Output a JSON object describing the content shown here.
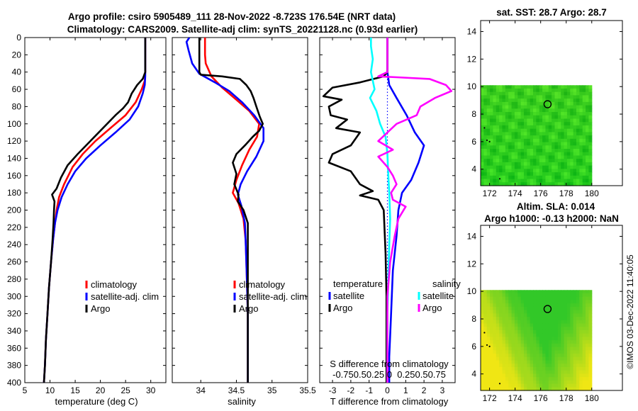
{
  "title": {
    "line1": "Argo profile: csiro 5905489_111 28-Nov-2022 -8.723S 176.54E (NRT data)",
    "line2": "Climatology: CARS2009. Satellite-adj clim: synTS_20221128.nc (0.93d earlier)"
  },
  "colors": {
    "climatology": "#ff0000",
    "satellite": "#0000ff",
    "argo": "#000000",
    "s_satellite": "#00ffff",
    "s_argo": "#ff00ff"
  },
  "depth_ticks": [
    0,
    20,
    40,
    60,
    80,
    100,
    120,
    140,
    160,
    180,
    200,
    220,
    240,
    260,
    280,
    300,
    320,
    340,
    360,
    380,
    400
  ],
  "chart_data": [
    {
      "type": "line",
      "name": "temperature",
      "xlabel": "temperature (deg C)",
      "xlim": [
        5,
        33
      ],
      "ylim": [
        400,
        0
      ],
      "x_ticks": [
        5,
        10,
        15,
        20,
        25,
        30
      ],
      "legend": [
        "climatology",
        "satellite-adj. clim",
        "Argo"
      ],
      "series": [
        {
          "name": "climatology",
          "color": "#ff0000",
          "points": [
            [
              28.9,
              0
            ],
            [
              28.9,
              40
            ],
            [
              28.8,
              50
            ],
            [
              28.2,
              60
            ],
            [
              27,
              75
            ],
            [
              25,
              90
            ],
            [
              22,
              105
            ],
            [
              19,
              120
            ],
            [
              16.5,
              135
            ],
            [
              14.5,
              150
            ],
            [
              12.8,
              170
            ],
            [
              11.8,
              185
            ],
            [
              11.3,
              200
            ],
            [
              11,
              215
            ],
            [
              10.6,
              235
            ],
            [
              10.2,
              260
            ],
            [
              9.8,
              290
            ],
            [
              9.5,
              320
            ],
            [
              9.2,
              350
            ],
            [
              9,
              380
            ],
            [
              8.8,
              400
            ]
          ]
        },
        {
          "name": "satellite-adj. clim",
          "color": "#0000ff",
          "points": [
            [
              28.9,
              0
            ],
            [
              28.9,
              45
            ],
            [
              28.8,
              55
            ],
            [
              28.4,
              65
            ],
            [
              27.5,
              80
            ],
            [
              25.8,
              95
            ],
            [
              23,
              110
            ],
            [
              20,
              125
            ],
            [
              17.2,
              140
            ],
            [
              15,
              155
            ],
            [
              13.5,
              170
            ],
            [
              12.3,
              185
            ],
            [
              11.5,
              200
            ],
            [
              11,
              215
            ],
            [
              10.6,
              235
            ],
            [
              10.2,
              260
            ],
            [
              9.8,
              290
            ],
            [
              9.5,
              320
            ],
            [
              9.2,
              350
            ],
            [
              9,
              380
            ],
            [
              8.8,
              400
            ]
          ]
        },
        {
          "name": "Argo",
          "color": "#000000",
          "points": [
            [
              28.9,
              0
            ],
            [
              28.9,
              40
            ],
            [
              28.6,
              45
            ],
            [
              28.4,
              48
            ],
            [
              27.3,
              55
            ],
            [
              26.2,
              65
            ],
            [
              25.5,
              75
            ],
            [
              24.5,
              82
            ],
            [
              23,
              90
            ],
            [
              20.5,
              105
            ],
            [
              18,
              120
            ],
            [
              15.5,
              135
            ],
            [
              13.5,
              148
            ],
            [
              12.2,
              162
            ],
            [
              11.3,
              175
            ],
            [
              10.4,
              182
            ],
            [
              10.9,
              190
            ],
            [
              10.8,
              200
            ],
            [
              10.7,
              215
            ],
            [
              10.5,
              235
            ],
            [
              10.2,
              260
            ],
            [
              9.8,
              290
            ],
            [
              9.5,
              320
            ],
            [
              9.2,
              350
            ],
            [
              9,
              380
            ],
            [
              8.8,
              400
            ]
          ]
        }
      ]
    },
    {
      "type": "line",
      "name": "salinity",
      "xlabel": "salinity",
      "xlim": [
        33.6,
        35.5
      ],
      "ylim": [
        400,
        0
      ],
      "x_ticks": [
        34,
        34.5,
        35,
        35.5
      ],
      "legend": [
        "climatology",
        "satellite-adj. clim",
        "Argo"
      ],
      "series": [
        {
          "name": "climatology",
          "color": "#ff0000",
          "points": [
            [
              34.06,
              0
            ],
            [
              34.06,
              20
            ],
            [
              34.07,
              30
            ],
            [
              34.15,
              45
            ],
            [
              34.3,
              58
            ],
            [
              34.5,
              72
            ],
            [
              34.68,
              85
            ],
            [
              34.82,
              100
            ],
            [
              34.79,
              115
            ],
            [
              34.68,
              130
            ],
            [
              34.58,
              148
            ],
            [
              34.5,
              165
            ],
            [
              34.45,
              180
            ],
            [
              34.53,
              192
            ],
            [
              34.6,
              210
            ],
            [
              34.63,
              235
            ],
            [
              34.64,
              260
            ],
            [
              34.65,
              290
            ],
            [
              34.66,
              320
            ],
            [
              34.66,
              350
            ],
            [
              34.66,
              380
            ],
            [
              34.66,
              400
            ]
          ]
        },
        {
          "name": "satellite-adj. clim",
          "color": "#0000ff",
          "points": [
            [
              33.84,
              0
            ],
            [
              33.8,
              5
            ],
            [
              33.83,
              15
            ],
            [
              33.88,
              30
            ],
            [
              33.98,
              42
            ],
            [
              34.2,
              52
            ],
            [
              34.4,
              62
            ],
            [
              34.58,
              75
            ],
            [
              34.75,
              90
            ],
            [
              34.88,
              105
            ],
            [
              34.88,
              120
            ],
            [
              34.78,
              138
            ],
            [
              34.65,
              155
            ],
            [
              34.56,
              170
            ],
            [
              34.52,
              182
            ],
            [
              34.57,
              195
            ],
            [
              34.62,
              215
            ],
            [
              34.63,
              235
            ],
            [
              34.64,
              260
            ],
            [
              34.65,
              290
            ],
            [
              34.66,
              320
            ],
            [
              34.66,
              350
            ],
            [
              34.66,
              380
            ],
            [
              34.66,
              400
            ]
          ]
        },
        {
          "name": "Argo",
          "color": "#000000",
          "points": [
            [
              33.98,
              0
            ],
            [
              33.98,
              40
            ],
            [
              34,
              43
            ],
            [
              34.3,
              45
            ],
            [
              34.55,
              48
            ],
            [
              34.64,
              55
            ],
            [
              34.7,
              62
            ],
            [
              34.74,
              70
            ],
            [
              34.78,
              80
            ],
            [
              34.83,
              92
            ],
            [
              34.87,
              100
            ],
            [
              34.82,
              108
            ],
            [
              34.73,
              115
            ],
            [
              34.62,
              125
            ],
            [
              34.5,
              135
            ],
            [
              34.45,
              145
            ],
            [
              34.5,
              158
            ],
            [
              34.47,
              170
            ],
            [
              34.53,
              182
            ],
            [
              34.52,
              190
            ],
            [
              34.6,
              200
            ],
            [
              34.66,
              215
            ],
            [
              34.66,
              240
            ],
            [
              34.66,
              270
            ],
            [
              34.66,
              300
            ],
            [
              34.66,
              340
            ],
            [
              34.66,
              380
            ],
            [
              34.66,
              400
            ]
          ]
        }
      ]
    },
    {
      "type": "line",
      "name": "difference from climatology",
      "xlabel": "T difference from climatology",
      "s_axis_label": "S difference from climatology",
      "s_axis_ticks": [
        "-0.75",
        "-0.5",
        "0",
        "0.25",
        "0.5",
        "0.75"
      ],
      "s_axis_text": "-0.750.50.25 0  0.250.50.75",
      "xlim": [
        -3.7,
        3.7
      ],
      "ylim": [
        400,
        0
      ],
      "x_ticks": [
        -3,
        -2,
        -1,
        0,
        1,
        2,
        3
      ],
      "legend_temperature_title": "temperature",
      "legend_salinity_title": "salinity",
      "legend_entries": [
        "satellite",
        "Argo",
        "satellite",
        "Argo"
      ],
      "series": [
        {
          "name": "T satellite",
          "color": "#0000ff",
          "points": [
            [
              0,
              0
            ],
            [
              0,
              40
            ],
            [
              0.1,
              55
            ],
            [
              0.5,
              70
            ],
            [
              1.05,
              90
            ],
            [
              1.5,
              110
            ],
            [
              2,
              125
            ],
            [
              1.7,
              145
            ],
            [
              1.3,
              165
            ],
            [
              0.8,
              180
            ],
            [
              0.6,
              200
            ],
            [
              0.5,
              230
            ],
            [
              0.3,
              270
            ],
            [
              0.2,
              320
            ],
            [
              0.1,
              370
            ],
            [
              0.1,
              400
            ]
          ]
        },
        {
          "name": "T Argo",
          "color": "#000000",
          "points": [
            [
              0,
              0
            ],
            [
              0,
              40
            ],
            [
              -0.2,
              45
            ],
            [
              -1.5,
              52
            ],
            [
              -3,
              58
            ],
            [
              -3.5,
              68
            ],
            [
              -2.5,
              72
            ],
            [
              -3.2,
              80
            ],
            [
              -3.1,
              90
            ],
            [
              -2.2,
              95
            ],
            [
              -2.8,
              105
            ],
            [
              -1.5,
              110
            ],
            [
              -2,
              125
            ],
            [
              -3,
              135
            ],
            [
              -3.2,
              145
            ],
            [
              -2,
              155
            ],
            [
              -1.5,
              170
            ],
            [
              -0.8,
              178
            ],
            [
              -1.5,
              183
            ],
            [
              -0.5,
              188
            ],
            [
              -0.2,
              200
            ],
            [
              -0.1,
              250
            ],
            [
              -0.05,
              300
            ],
            [
              -0.05,
              400
            ]
          ]
        },
        {
          "name": "S satellite",
          "color": "#00ffff",
          "points": [
            [
              -0.9,
              0
            ],
            [
              -0.9,
              10
            ],
            [
              -0.8,
              25
            ],
            [
              -0.9,
              40
            ],
            [
              -0.7,
              60
            ],
            [
              -0.95,
              70
            ],
            [
              -0.6,
              85
            ],
            [
              -0.4,
              100
            ],
            [
              -0.1,
              115
            ],
            [
              0,
              135
            ],
            [
              0.05,
              160
            ],
            [
              0.1,
              180
            ],
            [
              0.15,
              210
            ],
            [
              0.1,
              240
            ],
            [
              0.05,
              280
            ],
            [
              0,
              320
            ],
            [
              0,
              400
            ]
          ]
        },
        {
          "name": "S Argo",
          "color": "#ff00ff",
          "points": [
            [
              0,
              0
            ],
            [
              0,
              40
            ],
            [
              -0.5,
              45
            ],
            [
              0.5,
              46
            ],
            [
              2.3,
              48
            ],
            [
              3.2,
              55
            ],
            [
              3.5,
              62
            ],
            [
              2.6,
              70
            ],
            [
              1.8,
              80
            ],
            [
              1.6,
              90
            ],
            [
              0.5,
              100
            ],
            [
              0,
              110
            ],
            [
              -0.5,
              120
            ],
            [
              0.3,
              130
            ],
            [
              -0.5,
              138
            ],
            [
              0,
              150
            ],
            [
              0.3,
              160
            ],
            [
              0.5,
              170
            ],
            [
              0.2,
              180
            ],
            [
              0.3,
              188
            ],
            [
              1,
              196
            ],
            [
              0.6,
              210
            ],
            [
              0.4,
              230
            ],
            [
              0.15,
              260
            ],
            [
              0,
              300
            ],
            [
              0,
              400
            ]
          ]
        }
      ]
    },
    {
      "type": "heatmap",
      "name": "sst_map",
      "title": "sat. SST: 28.7 Argo: 28.7",
      "x_ticks": [
        172,
        174,
        176,
        178,
        180
      ],
      "y_ticks": [
        4,
        6,
        8,
        10,
        12,
        14
      ],
      "xlim": [
        171.3,
        182.4
      ],
      "ylim": [
        2.8,
        14.8
      ],
      "data_extent": {
        "lon": [
          171.3,
          180
        ],
        "lat": [
          2.8,
          10.1
        ]
      },
      "marker": {
        "lon": 176.54,
        "lat": 8.72
      }
    },
    {
      "type": "heatmap",
      "name": "sla_map",
      "title_line1": "Altim. SLA: 0.014",
      "title_line2": "Argo h1000: -0.13 h2000: NaN",
      "x_ticks": [
        172,
        174,
        176,
        178,
        180
      ],
      "y_ticks": [
        4,
        6,
        8,
        10,
        12,
        14
      ],
      "xlim": [
        171.3,
        182.4
      ],
      "ylim": [
        2.8,
        14.8
      ],
      "data_extent": {
        "lon": [
          171.3,
          180
        ],
        "lat": [
          2.8,
          10.1
        ]
      },
      "marker": {
        "lon": 176.54,
        "lat": 8.72
      }
    }
  ],
  "stamp": "©IMOS 03-Dec-2022 11:40:05"
}
